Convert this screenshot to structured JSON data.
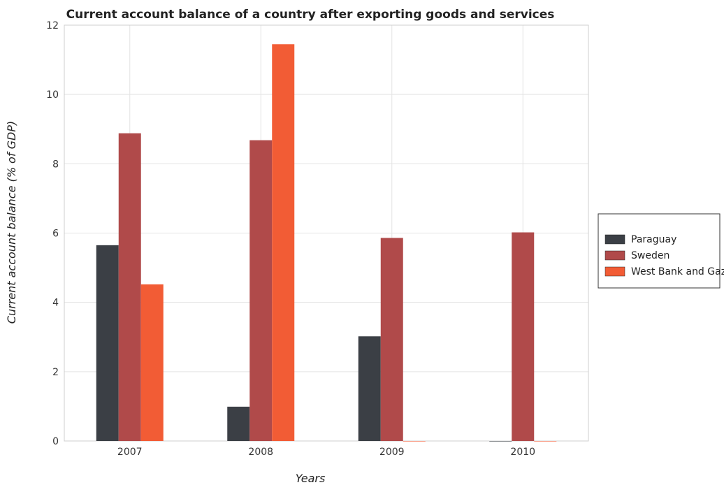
{
  "chart_data": {
    "type": "bar",
    "title": "Current account balance of a country after exporting goods and services",
    "xlabel": "Years",
    "ylabel": "Current account balance (% of GDP)",
    "categories": [
      "2007",
      "2008",
      "2009",
      "2010"
    ],
    "series": [
      {
        "name": "Paraguay",
        "color": "#3b3f45",
        "values": [
          5.65,
          0.99,
          3.02,
          0
        ]
      },
      {
        "name": "Sweden",
        "color": "#b04a4a",
        "values": [
          8.88,
          8.68,
          5.86,
          6.02
        ]
      },
      {
        "name": "West Bank and Gaza",
        "color": "#f25c35",
        "values": [
          4.52,
          11.45,
          0,
          0
        ]
      }
    ],
    "ylim": [
      0,
      12
    ],
    "yticks": [
      0,
      2,
      4,
      6,
      8,
      10,
      12
    ],
    "ytick_labels": [
      "0",
      "2",
      "4",
      "6",
      "8",
      "10",
      "12"
    ],
    "grid": true,
    "legend_position": "right"
  }
}
